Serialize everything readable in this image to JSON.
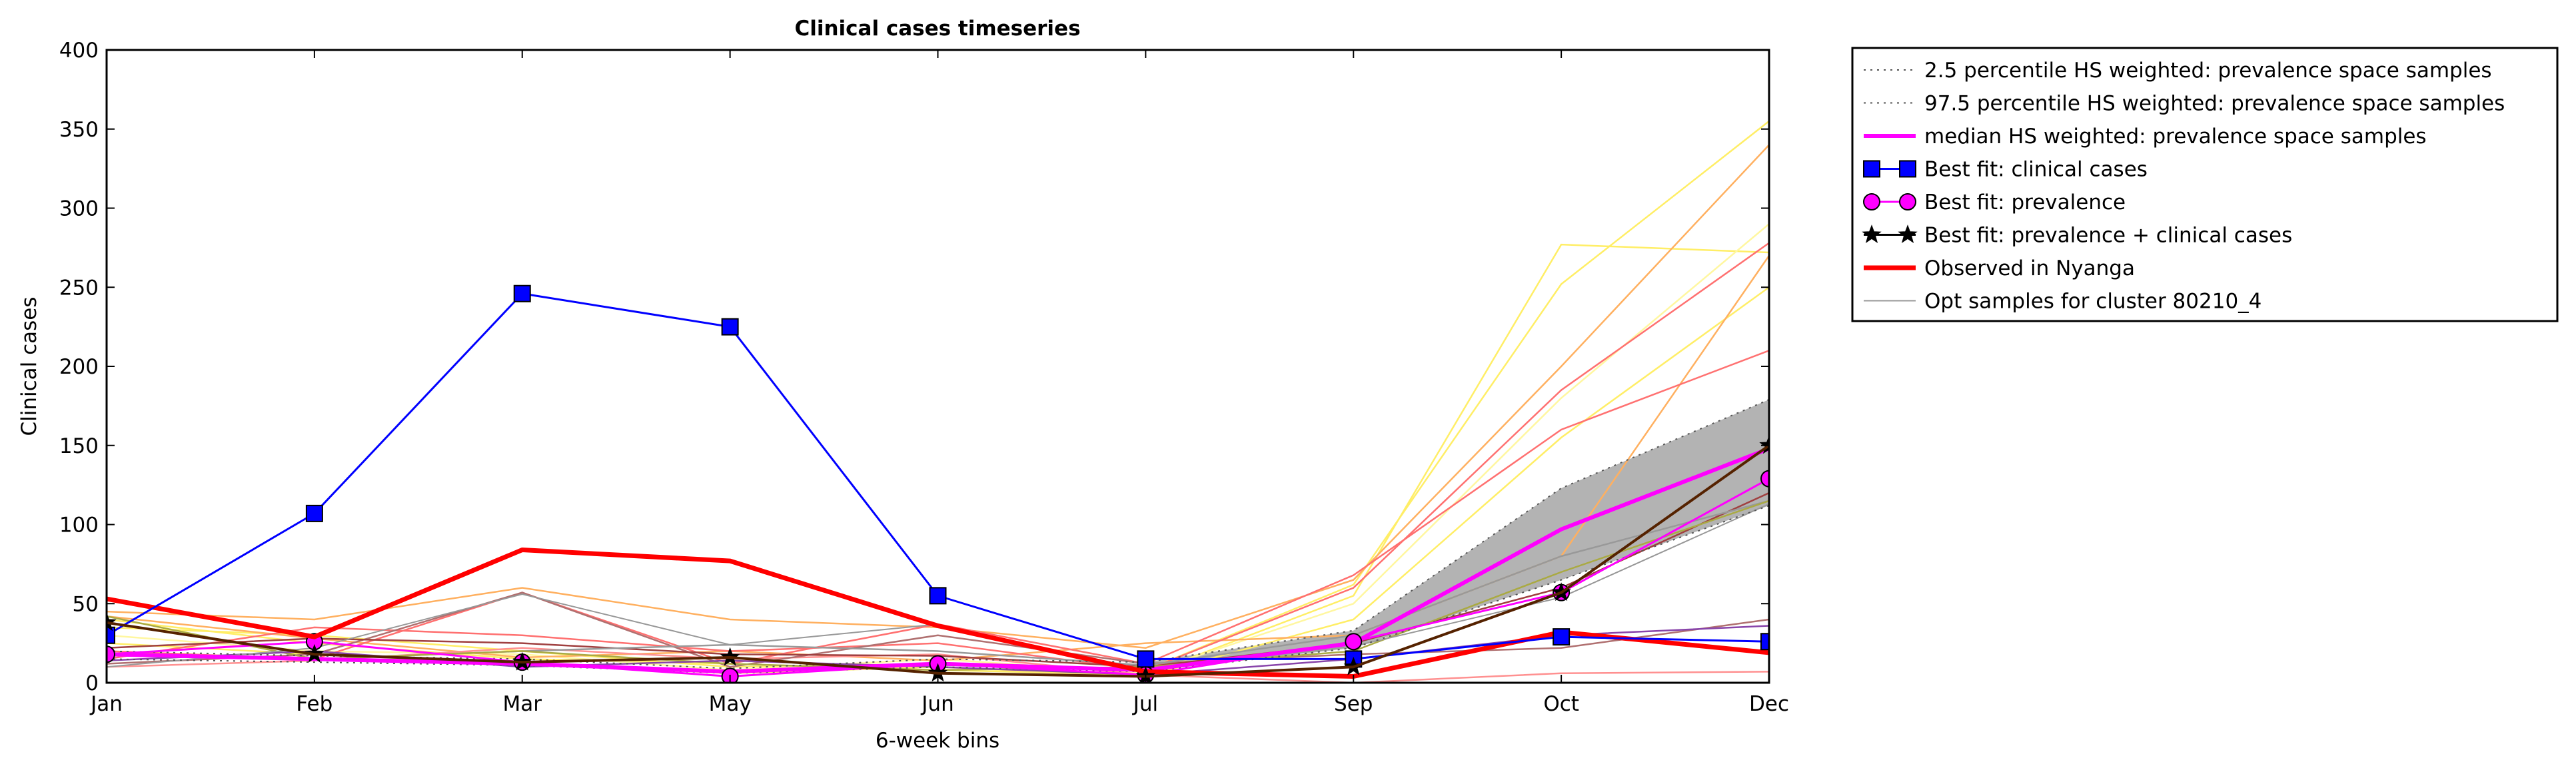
{
  "chart_data": {
    "type": "line",
    "title": "Clinical cases timeseries",
    "xlabel": "6-week bins",
    "ylabel": "Clinical cases",
    "categories": [
      "Jan",
      "Feb",
      "Mar",
      "May",
      "Jun",
      "Jul",
      "Sep",
      "Oct",
      "Dec"
    ],
    "ylim": [
      0,
      400
    ],
    "yticks": [
      0,
      50,
      100,
      150,
      200,
      250,
      300,
      350,
      400
    ],
    "legend_position": "outside-right",
    "band": {
      "lower": [
        15,
        13,
        11,
        6,
        10,
        7,
        22,
        65,
        112
      ],
      "upper": [
        20,
        17,
        15,
        9,
        15,
        13,
        33,
        123,
        179
      ]
    },
    "series": [
      {
        "name": "2.5 percentile HS weighted: prevalence space samples",
        "style": "dotted",
        "color": "#555555",
        "values": [
          15,
          13,
          11,
          6,
          10,
          7,
          22,
          65,
          112
        ]
      },
      {
        "name": "97.5 percentile HS weighted: prevalence space samples",
        "style": "dotted",
        "color": "#555555",
        "values": [
          20,
          17,
          15,
          9,
          15,
          13,
          33,
          123,
          179
        ]
      },
      {
        "name": "median HS weighted: prevalence space samples",
        "style": "line",
        "color": "#ff00ff",
        "values": [
          18,
          15,
          12,
          7,
          12,
          8,
          25,
          97,
          148
        ]
      },
      {
        "name": "Best fit: clinical cases",
        "style": "square-markers",
        "color": "#0000ff",
        "values": [
          30,
          107,
          246,
          225,
          55,
          15,
          15,
          29,
          26
        ]
      },
      {
        "name": "Best fit: prevalence",
        "style": "circle-markers",
        "color": "#ff00ff",
        "values": [
          18,
          26,
          13,
          4,
          12,
          5,
          26,
          57,
          129
        ]
      },
      {
        "name": "Best fit: prevalence + clinical cases",
        "style": "star-markers",
        "color": "#000000",
        "values": [
          38,
          18,
          13,
          16,
          6,
          4,
          10,
          57,
          150
        ]
      },
      {
        "name": "Observed in Nyanga",
        "style": "thick",
        "color": "#ff0000",
        "values": [
          53,
          29,
          84,
          77,
          36,
          7,
          4,
          32,
          19
        ]
      },
      {
        "name": "Opt samples for cluster 80210_4",
        "style": "thin",
        "color": "#999999",
        "values": [
          10,
          22,
          56,
          24,
          37,
          8,
          23,
          54,
          113
        ]
      }
    ],
    "opt_samples": [
      {
        "color": "#ffee66",
        "values": [
          40,
          25,
          15,
          12,
          8,
          5,
          55,
          277,
          272
        ]
      },
      {
        "color": "#ffee66",
        "values": [
          35,
          30,
          20,
          10,
          12,
          8,
          62,
          252,
          355
        ]
      },
      {
        "color": "#fff7a0",
        "values": [
          30,
          20,
          18,
          8,
          15,
          6,
          50,
          180,
          290
        ]
      },
      {
        "color": "#ffee66",
        "values": [
          25,
          18,
          12,
          6,
          10,
          4,
          40,
          155,
          250
        ]
      },
      {
        "color": "#ffb060",
        "values": [
          45,
          40,
          60,
          40,
          35,
          22,
          65,
          200,
          340
        ]
      },
      {
        "color": "#ffb060",
        "values": [
          42,
          28,
          16,
          20,
          14,
          25,
          30,
          80,
          270
        ]
      },
      {
        "color": "#ff7070",
        "values": [
          20,
          15,
          57,
          12,
          37,
          12,
          68,
          160,
          210
        ]
      },
      {
        "color": "#ff7070",
        "values": [
          15,
          35,
          30,
          20,
          25,
          8,
          60,
          185,
          278
        ]
      },
      {
        "color": "#ff9090",
        "values": [
          10,
          14,
          22,
          15,
          18,
          5,
          0,
          6,
          7
        ]
      },
      {
        "color": "#b07070",
        "values": [
          12,
          18,
          57,
          10,
          30,
          12,
          18,
          22,
          40
        ]
      },
      {
        "color": "#a04040",
        "values": [
          22,
          28,
          25,
          18,
          17,
          10,
          25,
          60,
          120
        ]
      },
      {
        "color": "#999999",
        "values": [
          18,
          15,
          20,
          24,
          20,
          11,
          30,
          80,
          115
        ]
      },
      {
        "color": "#aaaa44",
        "values": [
          42,
          15,
          20,
          12,
          8,
          10,
          20,
          70,
          115
        ]
      },
      {
        "color": "#8844aa",
        "values": [
          14,
          20,
          10,
          14,
          10,
          5,
          15,
          30,
          36
        ]
      }
    ],
    "overlay": [
      {
        "color": "#552200",
        "values": [
          38,
          18,
          13,
          16,
          6,
          4,
          10,
          57,
          150
        ]
      }
    ]
  }
}
